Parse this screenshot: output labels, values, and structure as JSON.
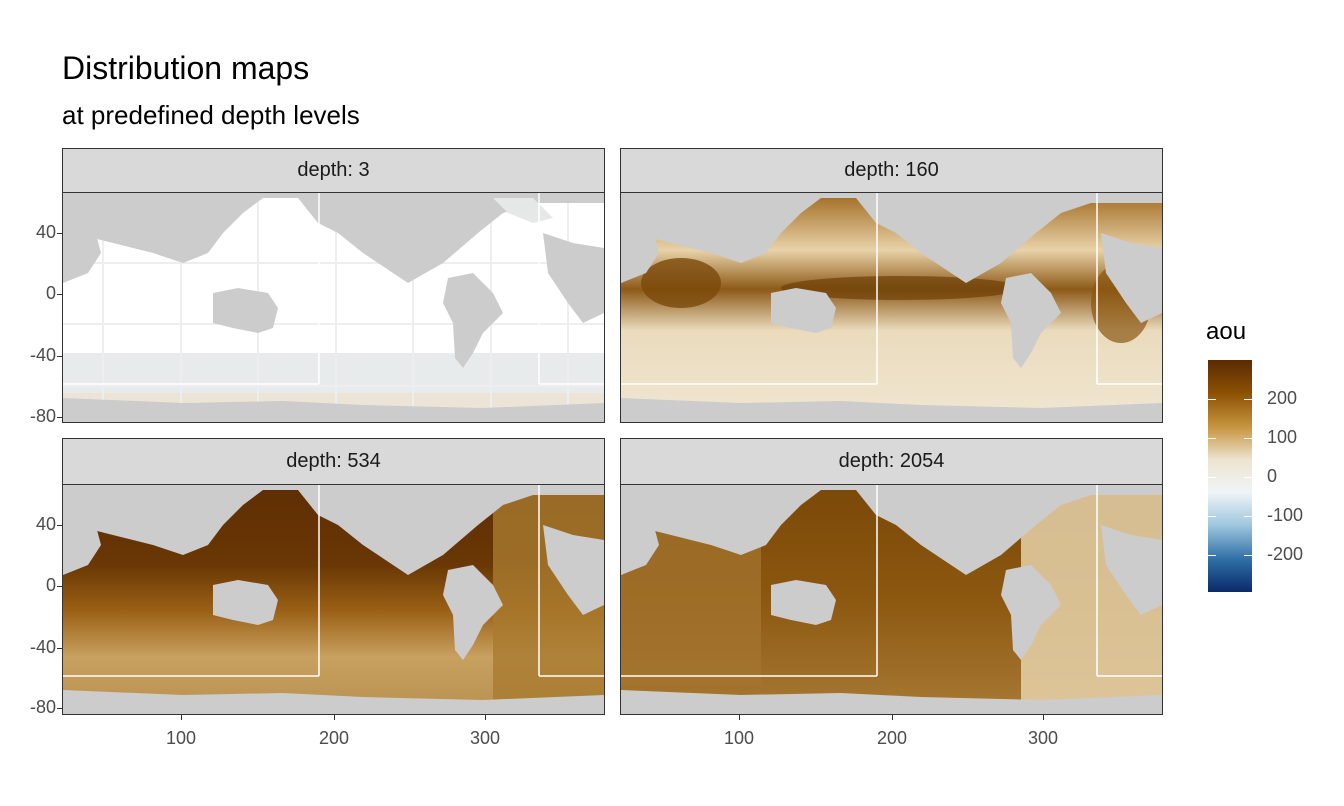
{
  "title": "Distribution maps",
  "subtitle": "at predefined depth levels",
  "panels": [
    {
      "label": "depth: 3",
      "depth": 3
    },
    {
      "label": "depth: 160",
      "depth": 160
    },
    {
      "label": "depth: 534",
      "depth": 534
    },
    {
      "label": "depth: 2054",
      "depth": 2054
    }
  ],
  "y_ticks": [
    "40",
    "0",
    "-40",
    "-80"
  ],
  "x_ticks": [
    "100",
    "200",
    "300"
  ],
  "legend": {
    "title": "aou",
    "labels": [
      "200",
      "100",
      "0",
      "-100",
      "-200"
    ],
    "colors": [
      "#5a2b03",
      "#8a5003",
      "#c7953f",
      "#ede4d0",
      "#f0f4f7",
      "#9fc8df",
      "#2f6ea6",
      "#0a2a6a"
    ]
  },
  "chart_data": {
    "type": "heatmap",
    "title": "Distribution maps",
    "subtitle": "at predefined depth levels",
    "xlabel": "",
    "ylabel": "",
    "xlim": [
      20,
      380
    ],
    "ylim": [
      -82,
      63
    ],
    "x_ticks": [
      100,
      200,
      300
    ],
    "y_ticks": [
      40,
      0,
      -40,
      -80
    ],
    "facets": [
      "depth: 3",
      "depth: 160",
      "depth: 534",
      "depth: 2054"
    ],
    "fill_variable": "aou",
    "fill_range": [
      -290,
      290
    ],
    "legend_breaks": [
      200,
      100,
      0,
      -100,
      -200
    ],
    "grid": true,
    "legend_position": "right"
  }
}
